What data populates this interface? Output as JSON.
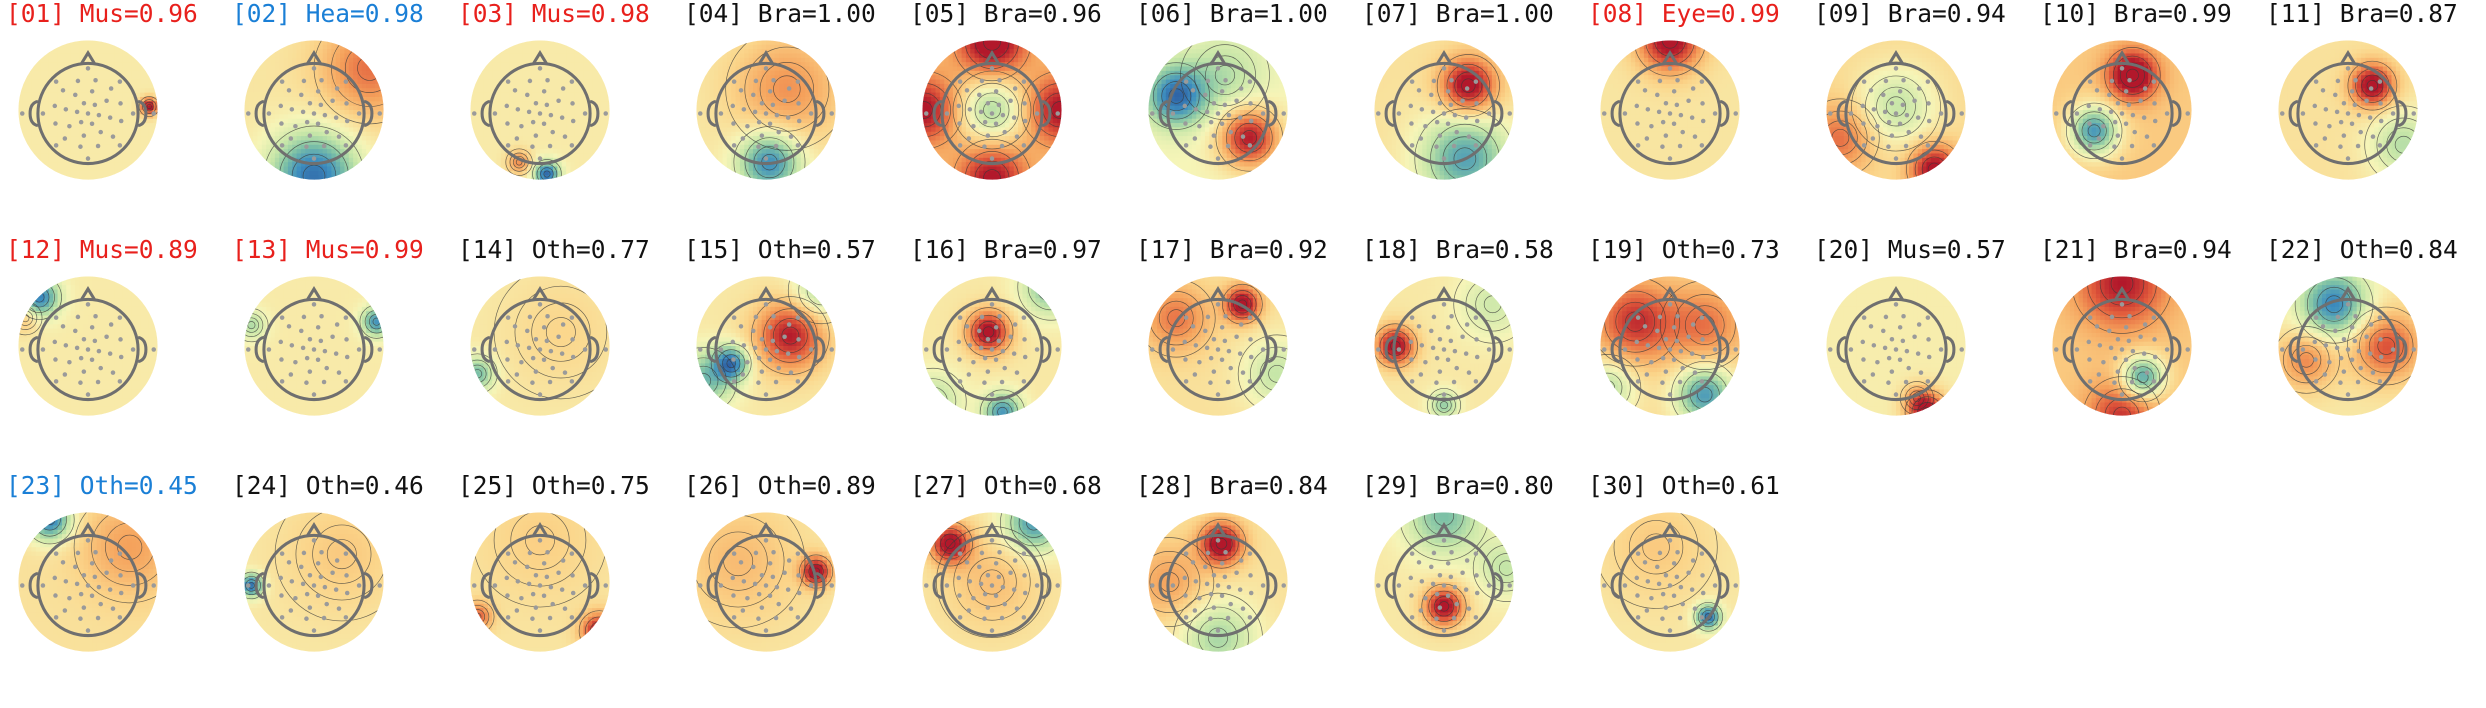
{
  "colors": {
    "brain": "#111111",
    "artifact": "#e8201c",
    "heart_other": "#1a7fd6",
    "head_outline": "#6f6f6f",
    "sensor": "#9a9a9a",
    "contour": "#3a3a3a",
    "colormap": [
      "#2c5aa0",
      "#3e8fbf",
      "#7cc0a6",
      "#c6e6a8",
      "#f6f5b8",
      "#fbd489",
      "#f5a25c",
      "#e15b3c",
      "#b2182b"
    ]
  },
  "chart_data": {
    "type": "topomap-grid",
    "components": [
      {
        "id": "[01]",
        "label": "Mus=0.96",
        "category": "Mus",
        "prob": 0.96,
        "status": "artifact",
        "blobs": [
          {
            "x": 0.88,
            "y": 0.05,
            "s": 0.09,
            "a": 1.0
          }
        ],
        "base": 0.08
      },
      {
        "id": "[02]",
        "label": "Hea=0.98",
        "category": "Hea",
        "prob": 0.98,
        "status": "highlight",
        "blobs": [
          {
            "x": 0.0,
            "y": -0.95,
            "s": 0.45,
            "a": -1.0
          },
          {
            "x": 0.8,
            "y": 0.6,
            "s": 0.5,
            "a": 0.55
          }
        ],
        "base": 0.12
      },
      {
        "id": "[03]",
        "label": "Mus=0.98",
        "category": "Mus",
        "prob": 0.98,
        "status": "artifact",
        "blobs": [
          {
            "x": 0.1,
            "y": -0.92,
            "s": 0.13,
            "a": -1.0
          },
          {
            "x": -0.3,
            "y": -0.75,
            "s": 0.12,
            "a": 0.5
          }
        ],
        "base": 0.08
      },
      {
        "id": "[04]",
        "label": "Bra=1.00",
        "category": "Bra",
        "prob": 1.0,
        "status": "brain",
        "blobs": [
          {
            "x": 0.05,
            "y": -0.75,
            "s": 0.32,
            "a": -0.9
          },
          {
            "x": 0.3,
            "y": 0.3,
            "s": 0.55,
            "a": 0.45
          }
        ],
        "base": 0.1
      },
      {
        "id": "[05]",
        "label": "Bra=0.96",
        "category": "Bra",
        "prob": 0.96,
        "status": "brain",
        "blobs": [
          {
            "x": 0.0,
            "y": 0.0,
            "s": 0.35,
            "a": -0.65
          },
          {
            "x": 0.0,
            "y": 0.98,
            "s": 0.35,
            "a": 0.9
          },
          {
            "x": 0.0,
            "y": -0.98,
            "s": 0.35,
            "a": 0.75
          },
          {
            "x": 0.98,
            "y": 0.0,
            "s": 0.35,
            "a": 0.75
          },
          {
            "x": -0.98,
            "y": 0.0,
            "s": 0.35,
            "a": 0.75
          }
        ],
        "base": 0.3
      },
      {
        "id": "[06]",
        "label": "Bra=1.00",
        "category": "Bra",
        "prob": 1.0,
        "status": "brain",
        "blobs": [
          {
            "x": 0.45,
            "y": -0.4,
            "s": 0.3,
            "a": 1.0
          },
          {
            "x": -0.6,
            "y": 0.2,
            "s": 0.3,
            "a": -0.9
          },
          {
            "x": 0.1,
            "y": 0.5,
            "s": 0.4,
            "a": -0.3
          }
        ],
        "base": 0.0
      },
      {
        "id": "[07]",
        "label": "Bra=1.00",
        "category": "Bra",
        "prob": 1.0,
        "status": "brain",
        "blobs": [
          {
            "x": 0.35,
            "y": 0.35,
            "s": 0.28,
            "a": 1.0
          },
          {
            "x": 0.3,
            "y": -0.7,
            "s": 0.45,
            "a": -0.8
          }
        ],
        "base": 0.15
      },
      {
        "id": "[08]",
        "label": "Eye=0.99",
        "category": "Eye",
        "prob": 0.99,
        "status": "artifact",
        "blobs": [
          {
            "x": 0.0,
            "y": 1.0,
            "s": 0.32,
            "a": 1.0
          }
        ],
        "base": 0.12
      },
      {
        "id": "[09]",
        "label": "Bra=0.94",
        "category": "Bra",
        "prob": 0.94,
        "status": "brain",
        "blobs": [
          {
            "x": 0.0,
            "y": 0.05,
            "s": 0.4,
            "a": -0.45
          },
          {
            "x": 0.55,
            "y": -0.85,
            "s": 0.25,
            "a": 0.9
          },
          {
            "x": -0.8,
            "y": -0.4,
            "s": 0.35,
            "a": 0.5
          }
        ],
        "base": 0.2
      },
      {
        "id": "[10]",
        "label": "Bra=0.99",
        "category": "Bra",
        "prob": 0.99,
        "status": "brain",
        "blobs": [
          {
            "x": 0.15,
            "y": 0.5,
            "s": 0.25,
            "a": 1.0
          },
          {
            "x": -0.4,
            "y": -0.3,
            "s": 0.25,
            "a": -1.0
          }
        ],
        "base": 0.3
      },
      {
        "id": "[11]",
        "label": "Bra=0.87",
        "category": "Bra",
        "prob": 0.87,
        "status": "brain",
        "blobs": [
          {
            "x": 0.35,
            "y": 0.35,
            "s": 0.22,
            "a": 1.0
          },
          {
            "x": 0.8,
            "y": -0.5,
            "s": 0.35,
            "a": -0.45
          }
        ],
        "base": 0.15
      },
      {
        "id": "[12]",
        "label": "Mus=0.89",
        "category": "Mus",
        "prob": 0.89,
        "status": "artifact",
        "blobs": [
          {
            "x": -0.7,
            "y": 0.7,
            "s": 0.2,
            "a": -0.9
          },
          {
            "x": -0.9,
            "y": 0.4,
            "s": 0.15,
            "a": 0.3
          }
        ],
        "base": 0.08
      },
      {
        "id": "[13]",
        "label": "Mus=0.99",
        "category": "Mus",
        "prob": 0.99,
        "status": "artifact",
        "blobs": [
          {
            "x": 0.9,
            "y": 0.35,
            "s": 0.15,
            "a": -0.8
          },
          {
            "x": -0.9,
            "y": 0.3,
            "s": 0.15,
            "a": -0.4
          }
        ],
        "base": 0.08
      },
      {
        "id": "[14]",
        "label": "Oth=0.77",
        "category": "Oth",
        "prob": 0.77,
        "status": "brain",
        "blobs": [
          {
            "x": -0.9,
            "y": -0.4,
            "s": 0.18,
            "a": -0.6
          },
          {
            "x": 0.3,
            "y": 0.2,
            "s": 0.6,
            "a": 0.15
          }
        ],
        "base": 0.08
      },
      {
        "id": "[15]",
        "label": "Oth=0.57",
        "category": "Oth",
        "prob": 0.57,
        "status": "brain",
        "blobs": [
          {
            "x": 0.35,
            "y": 0.15,
            "s": 0.35,
            "a": 0.9
          },
          {
            "x": -0.5,
            "y": -0.25,
            "s": 0.18,
            "a": -0.9
          },
          {
            "x": -0.9,
            "y": -0.5,
            "s": 0.3,
            "a": -0.6
          },
          {
            "x": 0.8,
            "y": 0.8,
            "s": 0.3,
            "a": -0.5
          }
        ],
        "base": 0.1
      },
      {
        "id": "[16]",
        "label": "Bra=0.97",
        "category": "Bra",
        "prob": 0.97,
        "status": "brain",
        "blobs": [
          {
            "x": -0.05,
            "y": 0.2,
            "s": 0.22,
            "a": 1.0
          },
          {
            "x": 0.15,
            "y": -0.95,
            "s": 0.2,
            "a": -0.8
          },
          {
            "x": 0.85,
            "y": 0.85,
            "s": 0.3,
            "a": -0.6
          },
          {
            "x": -0.85,
            "y": -0.8,
            "s": 0.3,
            "a": -0.4
          }
        ],
        "base": 0.1
      },
      {
        "id": "[17]",
        "label": "Bra=0.92",
        "category": "Bra",
        "prob": 0.92,
        "status": "brain",
        "blobs": [
          {
            "x": 0.35,
            "y": 0.6,
            "s": 0.18,
            "a": 1.0
          },
          {
            "x": -0.6,
            "y": 0.4,
            "s": 0.35,
            "a": 0.5
          },
          {
            "x": 0.85,
            "y": -0.4,
            "s": 0.35,
            "a": -0.4
          }
        ],
        "base": 0.15
      },
      {
        "id": "[18]",
        "label": "Bra=0.58",
        "category": "Bra",
        "prob": 0.58,
        "status": "brain",
        "blobs": [
          {
            "x": -0.7,
            "y": 0.0,
            "s": 0.2,
            "a": 1.0
          },
          {
            "x": 0.0,
            "y": -0.85,
            "s": 0.15,
            "a": -0.5
          },
          {
            "x": 0.7,
            "y": 0.6,
            "s": 0.35,
            "a": -0.3
          }
        ],
        "base": 0.1
      },
      {
        "id": "[19]",
        "label": "Oth=0.73",
        "category": "Oth",
        "prob": 0.73,
        "status": "brain",
        "blobs": [
          {
            "x": -0.5,
            "y": 0.35,
            "s": 0.4,
            "a": 0.7
          },
          {
            "x": 0.5,
            "y": -0.7,
            "s": 0.3,
            "a": -0.9
          },
          {
            "x": -0.9,
            "y": -0.6,
            "s": 0.3,
            "a": -0.5
          },
          {
            "x": 0.5,
            "y": 0.3,
            "s": 0.4,
            "a": 0.45
          }
        ],
        "base": 0.2
      },
      {
        "id": "[20]",
        "label": "Mus=0.57",
        "category": "Mus",
        "prob": 0.57,
        "status": "brain",
        "blobs": [
          {
            "x": 0.45,
            "y": -0.95,
            "s": 0.2,
            "a": 1.0
          },
          {
            "x": 0.3,
            "y": -0.75,
            "s": 0.15,
            "a": 0.3
          }
        ],
        "base": 0.06
      },
      {
        "id": "[21]",
        "label": "Bra=0.94",
        "category": "Bra",
        "prob": 0.94,
        "status": "brain",
        "blobs": [
          {
            "x": 0.3,
            "y": -0.45,
            "s": 0.22,
            "a": -1.0
          },
          {
            "x": 0.0,
            "y": 0.9,
            "s": 0.45,
            "a": 0.7
          },
          {
            "x": 0.0,
            "y": -1.0,
            "s": 0.35,
            "a": 0.6
          }
        ],
        "base": 0.3
      },
      {
        "id": "[22]",
        "label": "Oth=0.84",
        "category": "Oth",
        "prob": 0.84,
        "status": "brain",
        "blobs": [
          {
            "x": -0.2,
            "y": 0.6,
            "s": 0.35,
            "a": -0.9
          },
          {
            "x": 0.55,
            "y": 0.0,
            "s": 0.35,
            "a": 0.7
          },
          {
            "x": -0.6,
            "y": -0.2,
            "s": 0.3,
            "a": 0.5
          }
        ],
        "base": 0.1
      },
      {
        "id": "[23]",
        "label": "Oth=0.45",
        "category": "Oth",
        "prob": 0.45,
        "status": "highlight",
        "blobs": [
          {
            "x": -0.55,
            "y": 0.9,
            "s": 0.22,
            "a": -1.0
          },
          {
            "x": 0.6,
            "y": 0.5,
            "s": 0.5,
            "a": 0.35
          }
        ],
        "base": 0.15
      },
      {
        "id": "[24]",
        "label": "Oth=0.46",
        "category": "Oth",
        "prob": 0.46,
        "status": "brain",
        "blobs": [
          {
            "x": -0.9,
            "y": -0.05,
            "s": 0.12,
            "a": -1.0
          },
          {
            "x": 0.4,
            "y": 0.4,
            "s": 0.6,
            "a": 0.2
          }
        ],
        "base": 0.1
      },
      {
        "id": "[25]",
        "label": "Oth=0.75",
        "category": "Oth",
        "prob": 0.75,
        "status": "brain",
        "blobs": [
          {
            "x": 0.85,
            "y": -0.7,
            "s": 0.18,
            "a": 0.9
          },
          {
            "x": -0.9,
            "y": -0.5,
            "s": 0.15,
            "a": 0.6
          },
          {
            "x": 0.0,
            "y": 0.6,
            "s": 0.6,
            "a": 0.15
          }
        ],
        "base": 0.12
      },
      {
        "id": "[26]",
        "label": "Oth=0.89",
        "category": "Oth",
        "prob": 0.89,
        "status": "brain",
        "blobs": [
          {
            "x": 0.72,
            "y": 0.15,
            "s": 0.15,
            "a": 1.0
          },
          {
            "x": -0.4,
            "y": 0.3,
            "s": 0.6,
            "a": 0.25
          }
        ],
        "base": 0.12
      },
      {
        "id": "[27]",
        "label": "Oth=0.68",
        "category": "Oth",
        "prob": 0.68,
        "status": "brain",
        "blobs": [
          {
            "x": -0.6,
            "y": 0.55,
            "s": 0.2,
            "a": 1.0
          },
          {
            "x": 0.6,
            "y": 0.85,
            "s": 0.3,
            "a": -0.8
          },
          {
            "x": 0.0,
            "y": 0.0,
            "s": 0.5,
            "a": 0.25
          }
        ],
        "base": 0.1
      },
      {
        "id": "[28]",
        "label": "Bra=0.84",
        "category": "Bra",
        "prob": 0.84,
        "status": "brain",
        "blobs": [
          {
            "x": 0.05,
            "y": 0.55,
            "s": 0.22,
            "a": 1.0
          },
          {
            "x": 0.0,
            "y": -0.8,
            "s": 0.4,
            "a": -0.5
          },
          {
            "x": -0.7,
            "y": 0.0,
            "s": 0.4,
            "a": 0.35
          }
        ],
        "base": 0.15
      },
      {
        "id": "[29]",
        "label": "Bra=0.80",
        "category": "Bra",
        "prob": 0.8,
        "status": "brain",
        "blobs": [
          {
            "x": 0.0,
            "y": -0.35,
            "s": 0.2,
            "a": 1.0
          },
          {
            "x": 0.0,
            "y": 0.95,
            "s": 0.4,
            "a": -0.6
          },
          {
            "x": 0.9,
            "y": 0.2,
            "s": 0.3,
            "a": -0.35
          }
        ],
        "base": 0.1
      },
      {
        "id": "[30]",
        "label": "Oth=0.61",
        "category": "Oth",
        "prob": 0.61,
        "status": "brain",
        "blobs": [
          {
            "x": 0.55,
            "y": -0.5,
            "s": 0.13,
            "a": -1.0
          },
          {
            "x": -0.2,
            "y": 0.5,
            "s": 0.55,
            "a": 0.2
          }
        ],
        "base": 0.1
      }
    ]
  }
}
